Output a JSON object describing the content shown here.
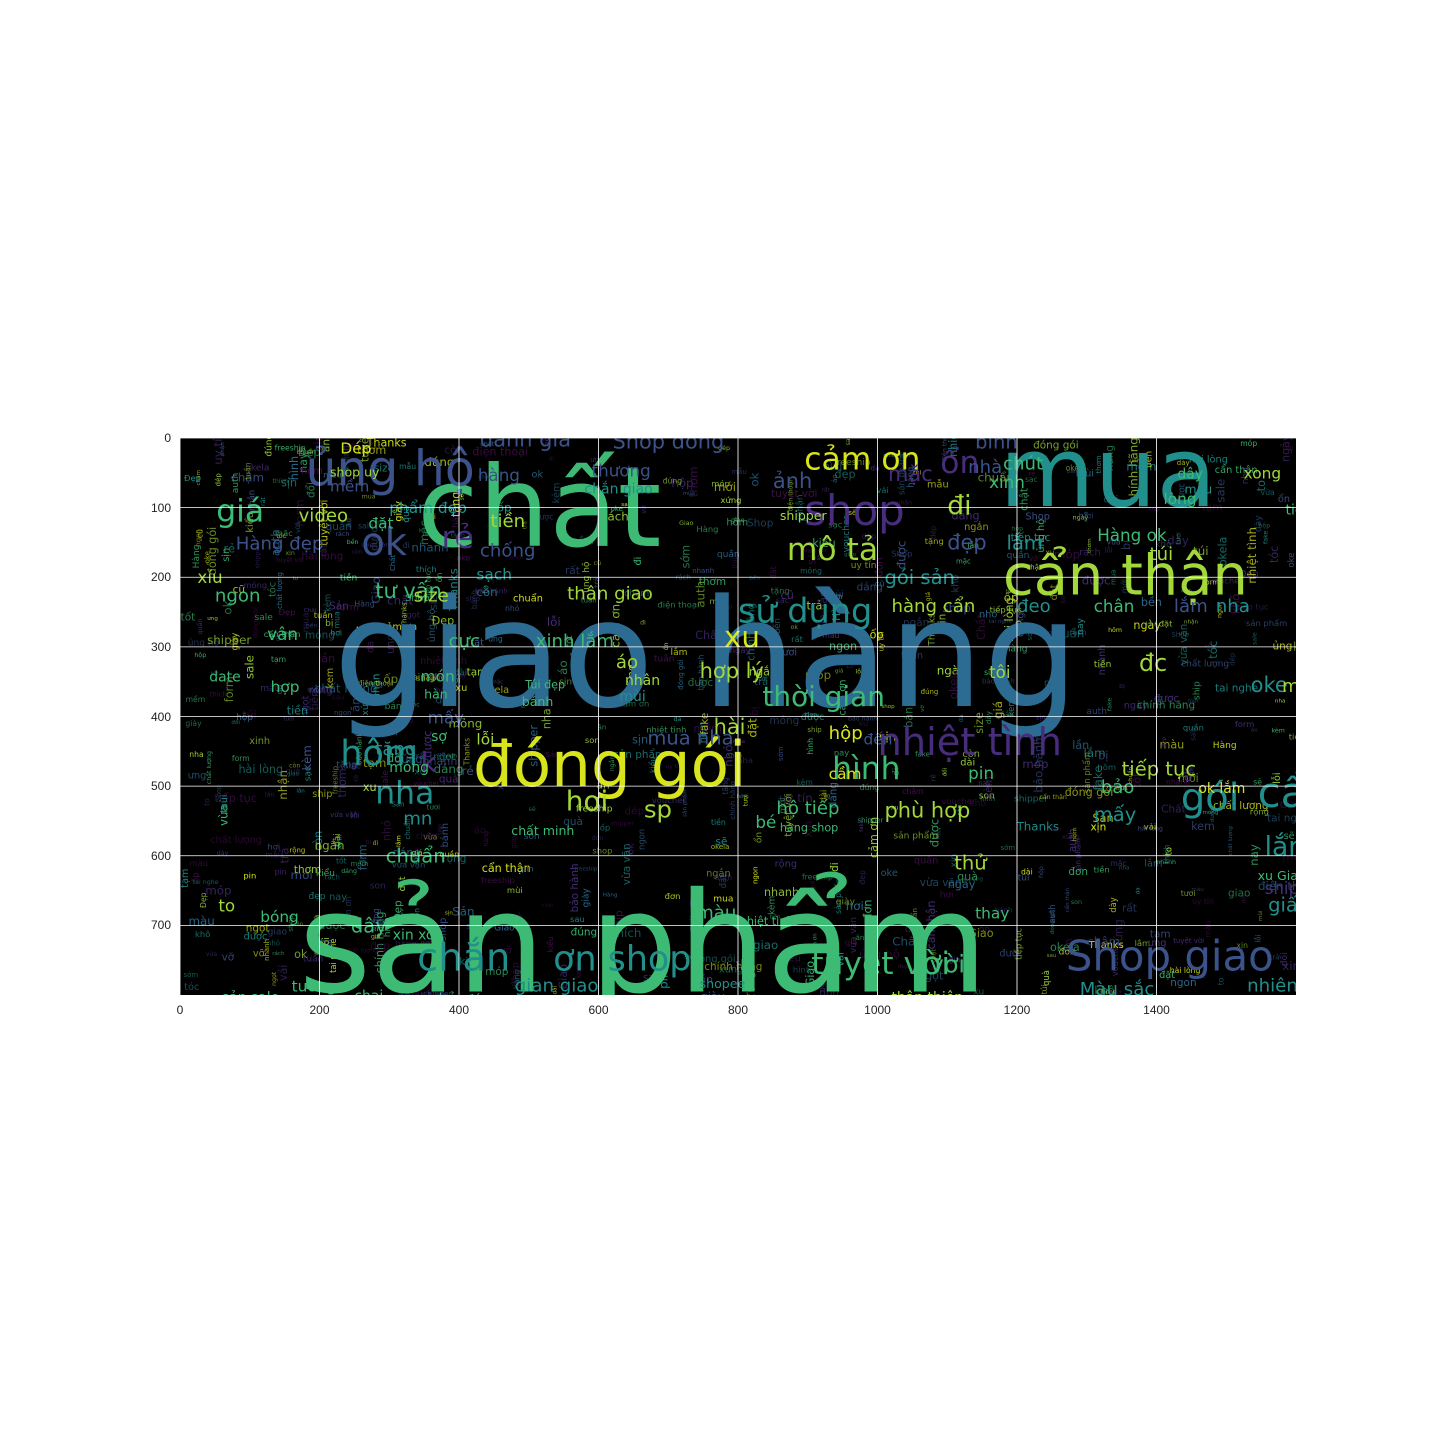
{
  "figure": {
    "background": "#000000",
    "grid_color": "#ffffff",
    "x_ticks": [
      "0",
      "200",
      "400",
      "600",
      "800",
      "1000",
      "1200",
      "1400"
    ],
    "y_ticks": [
      "0",
      "100",
      "200",
      "300",
      "400",
      "500",
      "600",
      "700"
    ],
    "x_range": [
      0,
      1600
    ],
    "y_range": [
      0,
      800
    ],
    "y_axis_inverted": true
  },
  "palette": {
    "yellow": "#d9e51c",
    "lime": "#a3d83b",
    "green": "#3dbb74",
    "teal": "#21908c",
    "blue": "#2c6c92",
    "navy": "#3b528b",
    "purple": "#472d7b",
    "dark": "#44114f"
  },
  "words_large": [
    {
      "text": "giao hàng",
      "x": 220,
      "y": 385,
      "size": 215,
      "color": "blue"
    },
    {
      "text": "sản phẩm",
      "x": 170,
      "y": 795,
      "size": 200,
      "color": "green"
    },
    {
      "text": "chất",
      "x": 340,
      "y": 155,
      "size": 160,
      "color": "green"
    },
    {
      "text": "mua",
      "x": 1175,
      "y": 98,
      "size": 140,
      "color": "teal"
    },
    {
      "text": "đóng gói",
      "x": 420,
      "y": 500,
      "size": 90,
      "color": "yellow"
    },
    {
      "text": "cẩn thận",
      "x": 1180,
      "y": 225,
      "size": 80,
      "color": "lime"
    },
    {
      "text": "nhiệt tình",
      "x": 1000,
      "y": 455,
      "size": 55,
      "color": "purple"
    },
    {
      "text": "Shop giao",
      "x": 1270,
      "y": 765,
      "size": 60,
      "color": "navy"
    },
    {
      "text": "shop",
      "x": 895,
      "y": 125,
      "size": 60,
      "color": "purple"
    },
    {
      "text": "ủng hộ",
      "x": 180,
      "y": 68,
      "size": 70,
      "color": "navy"
    },
    {
      "text": "cảm ơn",
      "x": 895,
      "y": 45,
      "size": 45,
      "color": "yellow"
    },
    {
      "text": "tuyệt vời",
      "x": 905,
      "y": 770,
      "size": 45,
      "color": "green"
    },
    {
      "text": "mô tả",
      "x": 870,
      "y": 175,
      "size": 45,
      "color": "lime"
    },
    {
      "text": "sử dụng",
      "x": 800,
      "y": 265,
      "size": 48,
      "color": "teal"
    },
    {
      "text": "thời gian",
      "x": 835,
      "y": 385,
      "size": 40,
      "color": "green"
    },
    {
      "text": "hình",
      "x": 935,
      "y": 490,
      "size": 45,
      "color": "green"
    },
    {
      "text": "gói",
      "x": 1435,
      "y": 535,
      "size": 55,
      "color": "teal"
    },
    {
      "text": "cẩn",
      "x": 1545,
      "y": 530,
      "size": 60,
      "color": "teal"
    },
    {
      "text": "ok",
      "x": 260,
      "y": 168,
      "size": 55,
      "color": "navy"
    },
    {
      "text": "rẻ",
      "x": 375,
      "y": 158,
      "size": 45,
      "color": "purple"
    },
    {
      "text": "giá",
      "x": 52,
      "y": 120,
      "size": 45,
      "color": "green"
    },
    {
      "text": "chắn",
      "x": 340,
      "y": 765,
      "size": 55,
      "color": "teal"
    },
    {
      "text": "ơn shop",
      "x": 535,
      "y": 765,
      "size": 50,
      "color": "teal"
    },
    {
      "text": "hôm",
      "x": 230,
      "y": 470,
      "size": 50,
      "color": "teal"
    },
    {
      "text": "nha",
      "x": 280,
      "y": 525,
      "size": 45,
      "color": "teal"
    },
    {
      "text": "hơi",
      "x": 553,
      "y": 535,
      "size": 40,
      "color": "lime"
    },
    {
      "text": "sp",
      "x": 665,
      "y": 545,
      "size": 35,
      "color": "lime"
    },
    {
      "text": "video",
      "x": 170,
      "y": 120,
      "size": 26,
      "color": "lime"
    },
    {
      "text": "xu",
      "x": 780,
      "y": 300,
      "size": 42,
      "color": "yellow"
    },
    {
      "text": "chuẩn",
      "x": 295,
      "y": 610,
      "size": 28,
      "color": "green"
    },
    {
      "text": "hợp lý",
      "x": 745,
      "y": 345,
      "size": 30,
      "color": "lime"
    },
    {
      "text": "phù hợp",
      "x": 1010,
      "y": 545,
      "size": 30,
      "color": "lime"
    },
    {
      "text": "tiếp tục",
      "x": 1350,
      "y": 485,
      "size": 28,
      "color": "lime"
    },
    {
      "text": "mua nha",
      "x": 670,
      "y": 440,
      "size": 28,
      "color": "navy"
    },
    {
      "text": "ổn",
      "x": 1090,
      "y": 50,
      "size": 45,
      "color": "purple"
    },
    {
      "text": "đi",
      "x": 1100,
      "y": 110,
      "size": 38,
      "color": "lime"
    },
    {
      "text": "tư vấn",
      "x": 280,
      "y": 230,
      "size": 30,
      "color": "green"
    },
    {
      "text": "đánh giá",
      "x": 430,
      "y": 12,
      "size": 30,
      "color": "navy"
    },
    {
      "text": "Shop đóng",
      "x": 620,
      "y": 15,
      "size": 30,
      "color": "navy"
    },
    {
      "text": "đẹp",
      "x": 1100,
      "y": 160,
      "size": 30,
      "color": "navy"
    },
    {
      "text": "lắm",
      "x": 1185,
      "y": 160,
      "size": 28,
      "color": "teal"
    },
    {
      "text": "Hàng đẹp",
      "x": 80,
      "y": 160,
      "size": 26,
      "color": "navy"
    },
    {
      "text": "gói sản",
      "x": 1010,
      "y": 210,
      "size": 28,
      "color": "teal"
    },
    {
      "text": "thân giao",
      "x": 555,
      "y": 232,
      "size": 26,
      "color": "lime"
    },
    {
      "text": "tiền",
      "x": 445,
      "y": 128,
      "size": 26,
      "color": "lime"
    },
    {
      "text": "tôi",
      "x": 1160,
      "y": 345,
      "size": 24,
      "color": "lime"
    },
    {
      "text": "đc",
      "x": 1375,
      "y": 335,
      "size": 34,
      "color": "lime"
    },
    {
      "text": "oke",
      "x": 1535,
      "y": 365,
      "size": 30,
      "color": "teal"
    },
    {
      "text": "lắm",
      "x": 1555,
      "y": 600,
      "size": 38,
      "color": "teal"
    },
    {
      "text": "tăng",
      "x": 280,
      "y": 455,
      "size": 26,
      "color": "teal"
    },
    {
      "text": "dây",
      "x": 245,
      "y": 710,
      "size": 28,
      "color": "green"
    },
    {
      "text": "giấy",
      "x": 1560,
      "y": 680,
      "size": 28,
      "color": "teal"
    },
    {
      "text": "bảo",
      "x": 1320,
      "y": 510,
      "size": 26,
      "color": "green"
    },
    {
      "text": "mấy",
      "x": 1310,
      "y": 550,
      "size": 28,
      "color": "teal"
    },
    {
      "text": "hàng cẩn",
      "x": 1020,
      "y": 250,
      "size": 26,
      "color": "lime"
    },
    {
      "text": "đeo",
      "x": 1200,
      "y": 250,
      "size": 26,
      "color": "teal"
    },
    {
      "text": "chân",
      "x": 1310,
      "y": 250,
      "size": 24,
      "color": "green"
    },
    {
      "text": "lắm",
      "x": 1425,
      "y": 250,
      "size": 26,
      "color": "navy"
    },
    {
      "text": "nha",
      "x": 1485,
      "y": 250,
      "size": 26,
      "color": "teal"
    },
    {
      "text": "cực",
      "x": 385,
      "y": 300,
      "size": 26,
      "color": "green"
    },
    {
      "text": "xinh lắm",
      "x": 510,
      "y": 300,
      "size": 26,
      "color": "green"
    },
    {
      "text": "size",
      "x": 335,
      "y": 235,
      "size": 26,
      "color": "lime"
    },
    {
      "text": "nhà",
      "x": 1130,
      "y": 50,
      "size": 26,
      "color": "navy"
    },
    {
      "text": "xinh",
      "x": 1160,
      "y": 72,
      "size": 24,
      "color": "green"
    },
    {
      "text": "mặc",
      "x": 1015,
      "y": 62,
      "size": 30,
      "color": "purple"
    },
    {
      "text": "ảnh",
      "x": 850,
      "y": 72,
      "size": 30,
      "color": "navy"
    },
    {
      "text": "hộp",
      "x": 930,
      "y": 432,
      "size": 26,
      "color": "yellow"
    },
    {
      "text": "cầm",
      "x": 930,
      "y": 490,
      "size": 22,
      "color": "yellow"
    },
    {
      "text": "pin",
      "x": 1130,
      "y": 490,
      "size": 24,
      "color": "green"
    },
    {
      "text": "hộ tiếp",
      "x": 855,
      "y": 540,
      "size": 26,
      "color": "green"
    },
    {
      "text": "thử",
      "x": 1110,
      "y": 620,
      "size": 28,
      "color": "lime"
    },
    {
      "text": "thay",
      "x": 1140,
      "y": 690,
      "size": 22,
      "color": "green"
    },
    {
      "text": "vời",
      "x": 1075,
      "y": 768,
      "size": 34,
      "color": "green"
    },
    {
      "text": "Màu sắc",
      "x": 1290,
      "y": 800,
      "size": 26,
      "color": "teal"
    },
    {
      "text": "nhiên",
      "x": 1530,
      "y": 795,
      "size": 26,
      "color": "teal"
    },
    {
      "text": "xong",
      "x": 1525,
      "y": 58,
      "size": 22,
      "color": "lime"
    },
    {
      "text": "chút",
      "x": 1180,
      "y": 45,
      "size": 26,
      "color": "green"
    },
    {
      "text": "bình",
      "x": 1140,
      "y": 15,
      "size": 28,
      "color": "navy"
    },
    {
      "text": "shipper",
      "x": 860,
      "y": 118,
      "size": 18,
      "color": "lime"
    },
    {
      "text": "Dép",
      "x": 230,
      "y": 22,
      "size": 22,
      "color": "yellow"
    },
    {
      "text": "shop uy",
      "x": 215,
      "y": 55,
      "size": 18,
      "color": "lime"
    },
    {
      "text": "mềm",
      "x": 215,
      "y": 77,
      "size": 22,
      "color": "navy"
    },
    {
      "text": "phẩm đẹp",
      "x": 300,
      "y": 108,
      "size": 22,
      "color": "teal"
    },
    {
      "text": "đặt",
      "x": 270,
      "y": 130,
      "size": 22,
      "color": "green"
    },
    {
      "text": "chống",
      "x": 430,
      "y": 170,
      "size": 26,
      "color": "navy"
    },
    {
      "text": "sạch",
      "x": 425,
      "y": 203,
      "size": 22,
      "color": "teal"
    },
    {
      "text": "ngon",
      "x": 50,
      "y": 235,
      "size": 26,
      "color": "green"
    },
    {
      "text": "xíu",
      "x": 25,
      "y": 208,
      "size": 24,
      "color": "lime"
    },
    {
      "text": "hàng",
      "x": 427,
      "y": 62,
      "size": 24,
      "color": "navy"
    },
    {
      "text": "thương",
      "x": 590,
      "y": 55,
      "size": 24,
      "color": "navy"
    },
    {
      "text": "chắn giao",
      "x": 580,
      "y": 80,
      "size": 20,
      "color": "teal"
    },
    {
      "text": "đến",
      "x": 980,
      "y": 440,
      "size": 22,
      "color": "navy"
    },
    {
      "text": "tiện",
      "x": 1585,
      "y": 110,
      "size": 20,
      "color": "green"
    },
    {
      "text": "Hàng ok",
      "x": 1315,
      "y": 148,
      "size": 24,
      "color": "green"
    },
    {
      "text": "túi",
      "x": 1390,
      "y": 175,
      "size": 26,
      "color": "lime"
    },
    {
      "text": "mn",
      "x": 1580,
      "y": 365,
      "size": 26,
      "color": "lime"
    },
    {
      "text": "ok lắm",
      "x": 1460,
      "y": 510,
      "size": 20,
      "color": "yellow"
    },
    {
      "text": "xu Giao",
      "x": 1545,
      "y": 635,
      "size": 18,
      "color": "green"
    },
    {
      "text": "ship",
      "x": 1555,
      "y": 655,
      "size": 24,
      "color": "purple"
    },
    {
      "text": "to",
      "x": 55,
      "y": 680,
      "size": 24,
      "color": "lime"
    },
    {
      "text": "bóng",
      "x": 115,
      "y": 695,
      "size": 22,
      "color": "green"
    },
    {
      "text": "tưởng",
      "x": 160,
      "y": 795,
      "size": 22,
      "color": "green"
    },
    {
      "text": "xin xò",
      "x": 305,
      "y": 720,
      "size": 20,
      "color": "green"
    },
    {
      "text": "gian giao",
      "x": 480,
      "y": 795,
      "size": 26,
      "color": "teal"
    },
    {
      "text": "màu",
      "x": 740,
      "y": 690,
      "size": 26,
      "color": "green"
    },
    {
      "text": "shopee",
      "x": 745,
      "y": 790,
      "size": 18,
      "color": "teal"
    },
    {
      "text": "thân thiện",
      "x": 1020,
      "y": 810,
      "size": 20,
      "color": "lime"
    },
    {
      "text": "sản sale",
      "x": 60,
      "y": 810,
      "size": 20,
      "color": "green"
    },
    {
      "text": "chai",
      "x": 250,
      "y": 808,
      "size": 20,
      "color": "green"
    },
    {
      "text": "chủ",
      "x": 360,
      "y": 812,
      "size": 20,
      "color": "green"
    },
    {
      "text": "đáo",
      "x": 410,
      "y": 812,
      "size": 18,
      "color": "green"
    },
    {
      "text": "hợp",
      "x": 130,
      "y": 365,
      "size": 22,
      "color": "green"
    },
    {
      "text": "vân",
      "x": 125,
      "y": 290,
      "size": 24,
      "color": "green"
    },
    {
      "text": "date",
      "x": 42,
      "y": 350,
      "size": 20,
      "color": "green"
    },
    {
      "text": "món",
      "x": 345,
      "y": 350,
      "size": 22,
      "color": "green"
    },
    {
      "text": "hàn",
      "x": 350,
      "y": 374,
      "size": 18,
      "color": "green"
    },
    {
      "text": "áo",
      "x": 625,
      "y": 330,
      "size": 26,
      "color": "lime"
    },
    {
      "text": "nhân",
      "x": 638,
      "y": 355,
      "size": 20,
      "color": "lime"
    },
    {
      "text": "mùi",
      "x": 630,
      "y": 378,
      "size": 20,
      "color": "teal"
    },
    {
      "text": "Túi đẹp",
      "x": 495,
      "y": 360,
      "size": 16,
      "color": "green"
    },
    {
      "text": "bánh",
      "x": 490,
      "y": 385,
      "size": 18,
      "color": "green"
    },
    {
      "text": "lỗi",
      "x": 425,
      "y": 440,
      "size": 22,
      "color": "lime"
    },
    {
      "text": "sợ",
      "x": 360,
      "y": 435,
      "size": 20,
      "color": "green"
    },
    {
      "text": "mấy",
      "x": 355,
      "y": 410,
      "size": 24,
      "color": "navy"
    },
    {
      "text": "k",
      "x": 345,
      "y": 480,
      "size": 40,
      "color": "purple"
    },
    {
      "text": "móng",
      "x": 300,
      "y": 480,
      "size": 20,
      "color": "green"
    },
    {
      "text": "hài",
      "x": 765,
      "y": 425,
      "size": 30,
      "color": "lime"
    },
    {
      "text": "bé",
      "x": 825,
      "y": 560,
      "size": 24,
      "color": "green"
    },
    {
      "text": "hàng shop",
      "x": 860,
      "y": 565,
      "size": 16,
      "color": "green"
    },
    {
      "text": "mn",
      "x": 320,
      "y": 555,
      "size": 26,
      "color": "teal"
    },
    {
      "text": "chất minh",
      "x": 475,
      "y": 570,
      "size": 18,
      "color": "green"
    },
    {
      "text": "lòng",
      "x": 1410,
      "y": 95,
      "size": 22,
      "color": "green"
    },
    {
      "text": "dây",
      "x": 1430,
      "y": 58,
      "size": 20,
      "color": "green"
    },
    {
      "text": "mẫu",
      "x": 1440,
      "y": 80,
      "size": 18,
      "color": "teal"
    }
  ],
  "words_small": [
    "shop",
    "giao",
    "hàng",
    "đẹp",
    "chất lượng",
    "giá",
    "ok",
    "nhanh",
    "tốt",
    "mua",
    "sản phẩm",
    "đóng gói",
    "cẩn thận",
    "shipper",
    "nhiệt tình",
    "ủng hộ",
    "rẻ",
    "xinh",
    "chuẩn",
    "đúng",
    "mẫu",
    "size",
    "vải",
    "màu",
    "hình",
    "thích",
    "lắm",
    "nha",
    "tiền",
    "đơn",
    "hộp",
    "túi",
    "giày",
    "dép",
    "áo",
    "quần",
    "vừa",
    "mặc",
    "đi",
    "được",
    "còn",
    "rất",
    "hài lòng",
    "tuyệt vời",
    "ưng",
    "xứng",
    "sẽ",
    "lần",
    "sau",
    "tiếp tục",
    "Shop",
    "Giao",
    "Hàng",
    "Sản",
    "Chất",
    "Đẹp",
    "Thanks",
    "cảm ơn",
    "uy tín",
    "hơi",
    "mỏng",
    "dày",
    "bền",
    "mềm",
    "thơm",
    "mùi",
    "pin",
    "sạc",
    "tai nghe",
    "ốp",
    "điện thoại",
    "kem",
    "son",
    "da",
    "tóc",
    "bánh",
    "ăn",
    "ngon",
    "ngọt",
    "tươi",
    "khô",
    "bị",
    "lỗi",
    "rách",
    "móp",
    "vỡ",
    "trả",
    "đổi",
    "bảo hành",
    "tặng",
    "kèm",
    "quà",
    "voucher",
    "sale",
    "xu",
    "freeship",
    "ship",
    "nhận",
    "đặt",
    "ngày",
    "hôm",
    "nay",
    "tuần",
    "sớm",
    "chậm",
    "nhỏ",
    "to",
    "dài",
    "ngắn",
    "rộng",
    "chật",
    "vừa vặn",
    "form",
    "dáng",
    "kiểu",
    "mới",
    "cũ",
    "chính hãng",
    "fake",
    "auth",
    "xịn",
    "sịn",
    "ổn",
    "oke",
    "okela",
    "tạm",
    "được"
  ]
}
